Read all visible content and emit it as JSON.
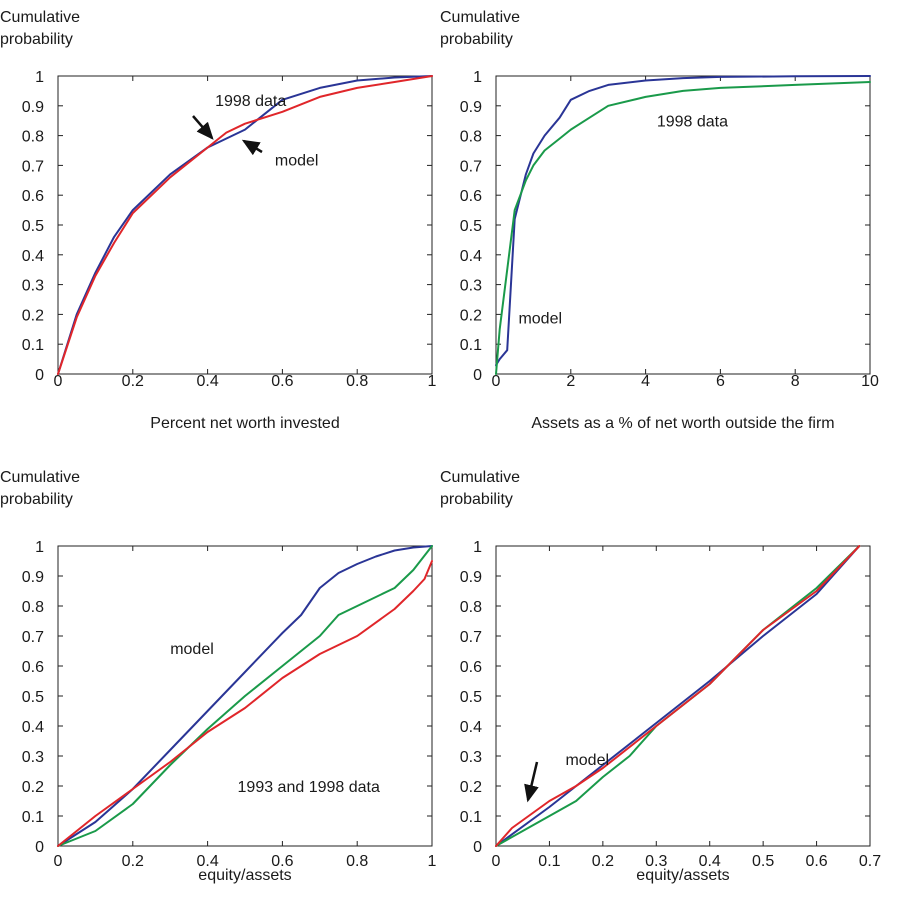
{
  "chart_data": [
    {
      "type": "line",
      "ylabel": "Cumulative probability",
      "xlabel": "Percent net worth invested",
      "xlim": [
        0,
        1
      ],
      "ylim": [
        0,
        1
      ],
      "xticks": [
        "0",
        "0.2",
        "0.4",
        "0.6",
        "0.8",
        "1"
      ],
      "yticks": [
        "0",
        "0.1",
        "0.2",
        "0.3",
        "0.4",
        "0.5",
        "0.6",
        "0.7",
        "0.8",
        "0.9",
        "1"
      ],
      "grid": false,
      "series": [
        {
          "color": "#2a3596",
          "x": [
            0,
            0.05,
            0.1,
            0.15,
            0.2,
            0.3,
            0.4,
            0.5,
            0.53,
            0.6,
            0.7,
            0.8,
            0.9,
            1.0
          ],
          "y": [
            0,
            0.2,
            0.34,
            0.46,
            0.55,
            0.67,
            0.76,
            0.82,
            0.85,
            0.92,
            0.96,
            0.985,
            0.995,
            1.0
          ]
        },
        {
          "color": "#e0262a",
          "x": [
            0,
            0.05,
            0.1,
            0.15,
            0.2,
            0.3,
            0.4,
            0.45,
            0.5,
            0.6,
            0.7,
            0.8,
            0.9,
            1.0
          ],
          "y": [
            0,
            0.19,
            0.33,
            0.44,
            0.54,
            0.66,
            0.76,
            0.81,
            0.84,
            0.88,
            0.93,
            0.96,
            0.98,
            1.0
          ]
        }
      ],
      "annotations": [
        {
          "text": "1998 data",
          "x": 0.42,
          "y": 0.9
        },
        {
          "text": "model",
          "x": 0.58,
          "y": 0.7
        }
      ]
    },
    {
      "type": "line",
      "ylabel": "Cumulative probability",
      "xlabel": "Assets as a % of net worth outside the firm",
      "xlim": [
        0,
        10
      ],
      "ylim": [
        0,
        1
      ],
      "xticks": [
        "0",
        "2",
        "4",
        "6",
        "8",
        "10"
      ],
      "yticks": [
        "0",
        "0.1",
        "0.2",
        "0.3",
        "0.4",
        "0.5",
        "0.6",
        "0.7",
        "0.8",
        "0.9",
        "1"
      ],
      "grid": false,
      "series": [
        {
          "color": "#2a3596",
          "x": [
            0,
            0.1,
            0.3,
            0.5,
            0.8,
            1.0,
            1.3,
            1.7,
            2.0,
            2.5,
            3.0,
            4.0,
            5.0,
            6.0,
            8.0,
            10.0
          ],
          "y": [
            0.03,
            0.05,
            0.08,
            0.52,
            0.67,
            0.74,
            0.8,
            0.86,
            0.92,
            0.95,
            0.97,
            0.985,
            0.993,
            0.997,
            0.999,
            1.0
          ]
        },
        {
          "color": "#1a9a4a",
          "x": [
            0,
            0.1,
            0.3,
            0.5,
            0.8,
            1.0,
            1.3,
            1.7,
            2.0,
            2.5,
            3.0,
            4.0,
            5.0,
            6.0,
            8.0,
            10.0
          ],
          "y": [
            0.0,
            0.15,
            0.35,
            0.55,
            0.65,
            0.7,
            0.75,
            0.79,
            0.82,
            0.86,
            0.9,
            0.93,
            0.95,
            0.96,
            0.97,
            0.98
          ]
        }
      ],
      "annotations": [
        {
          "text": "1998 data",
          "x": 4.3,
          "y": 0.83
        },
        {
          "text": "model",
          "x": 0.6,
          "y": 0.17
        }
      ]
    },
    {
      "type": "line",
      "ylabel": "Cumulative probability",
      "xlabel": "equity/assets",
      "xlim": [
        0,
        1
      ],
      "ylim": [
        0,
        1
      ],
      "xticks": [
        "0",
        "0.2",
        "0.4",
        "0.6",
        "0.8",
        "1"
      ],
      "yticks": [
        "0",
        "0.1",
        "0.2",
        "0.3",
        "0.4",
        "0.5",
        "0.6",
        "0.7",
        "0.8",
        "0.9",
        "1"
      ],
      "grid": false,
      "series": [
        {
          "color": "#2a3596",
          "x": [
            0,
            0.1,
            0.2,
            0.3,
            0.4,
            0.5,
            0.6,
            0.65,
            0.7,
            0.75,
            0.8,
            0.85,
            0.9,
            0.95,
            1.0
          ],
          "y": [
            0,
            0.08,
            0.19,
            0.32,
            0.45,
            0.58,
            0.71,
            0.77,
            0.86,
            0.91,
            0.94,
            0.965,
            0.985,
            0.995,
            1.0
          ]
        },
        {
          "color": "#1a9a4a",
          "x": [
            0,
            0.1,
            0.2,
            0.3,
            0.4,
            0.5,
            0.6,
            0.7,
            0.75,
            0.8,
            0.9,
            0.95,
            1.0
          ],
          "y": [
            0,
            0.05,
            0.14,
            0.27,
            0.39,
            0.5,
            0.6,
            0.7,
            0.77,
            0.8,
            0.86,
            0.92,
            1.0
          ]
        },
        {
          "color": "#e0262a",
          "x": [
            0,
            0.1,
            0.2,
            0.3,
            0.4,
            0.5,
            0.6,
            0.7,
            0.8,
            0.9,
            0.95,
            0.98,
            1.0
          ],
          "y": [
            0,
            0.1,
            0.19,
            0.28,
            0.38,
            0.46,
            0.56,
            0.64,
            0.7,
            0.79,
            0.85,
            0.89,
            0.95
          ]
        }
      ],
      "annotations": [
        {
          "text": "model",
          "x": 0.3,
          "y": 0.64
        },
        {
          "text": "1993 and 1998 data",
          "x": 0.48,
          "y": 0.18
        }
      ]
    },
    {
      "type": "line",
      "ylabel": "Cumulative probability",
      "xlabel": "equity/assets",
      "xlim": [
        0,
        0.7
      ],
      "ylim": [
        0,
        1
      ],
      "xticks": [
        "0",
        "0.1",
        "0.2",
        "0.3",
        "0.4",
        "0.5",
        "0.6",
        "0.7"
      ],
      "yticks": [
        "0",
        "0.1",
        "0.2",
        "0.3",
        "0.4",
        "0.5",
        "0.6",
        "0.7",
        "0.8",
        "0.9",
        "1"
      ],
      "grid": false,
      "series": [
        {
          "color": "#2a3596",
          "x": [
            0,
            0.1,
            0.2,
            0.3,
            0.4,
            0.5,
            0.6,
            0.68
          ],
          "y": [
            0,
            0.13,
            0.27,
            0.41,
            0.55,
            0.7,
            0.84,
            1.0
          ]
        },
        {
          "color": "#1a9a4a",
          "x": [
            0,
            0.05,
            0.1,
            0.15,
            0.2,
            0.25,
            0.3,
            0.4,
            0.5,
            0.6,
            0.68
          ],
          "y": [
            0,
            0.05,
            0.1,
            0.15,
            0.23,
            0.3,
            0.4,
            0.54,
            0.72,
            0.86,
            1.0
          ]
        },
        {
          "color": "#e0262a",
          "x": [
            0,
            0.03,
            0.1,
            0.15,
            0.2,
            0.3,
            0.4,
            0.5,
            0.6,
            0.68
          ],
          "y": [
            0,
            0.06,
            0.15,
            0.2,
            0.26,
            0.4,
            0.54,
            0.72,
            0.85,
            1.0
          ]
        }
      ],
      "annotations": [
        {
          "text": "model",
          "x": 0.13,
          "y": 0.27
        }
      ]
    }
  ]
}
